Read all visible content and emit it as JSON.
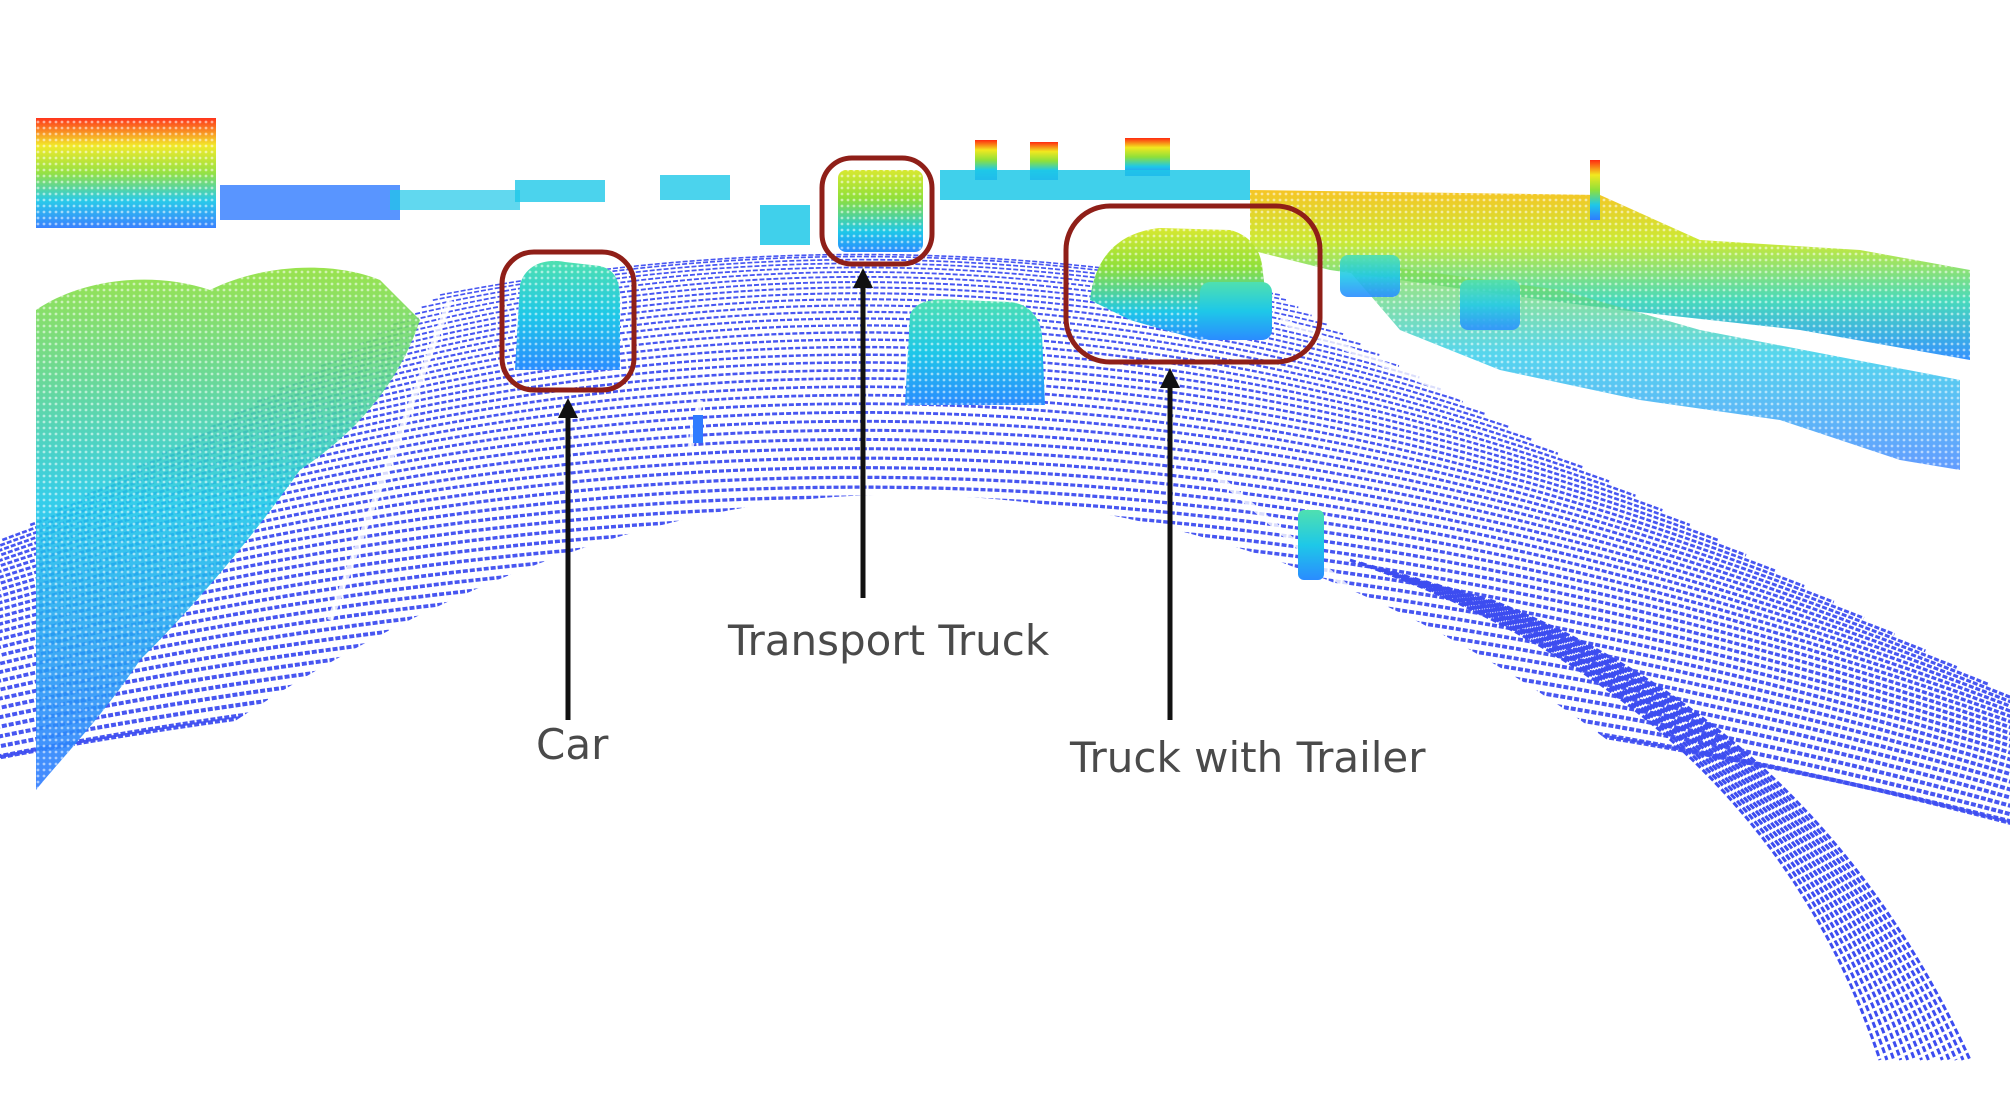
{
  "scene": {
    "description_type": "lidar-point-cloud",
    "colors": {
      "ground": "#3d4df0",
      "low": "#2f7bff",
      "mid": "#1ec8e8",
      "high_green": "#8fe03a",
      "high_yellow": "#f2e81f",
      "top_red": "#ff2a10",
      "box_stroke": "#8f1f18",
      "arrow": "#111111",
      "label": "#4a4a4a"
    }
  },
  "annotations": [
    {
      "label": "Car"
    },
    {
      "label": "Transport Truck"
    },
    {
      "label": "Truck with Trailer"
    }
  ]
}
